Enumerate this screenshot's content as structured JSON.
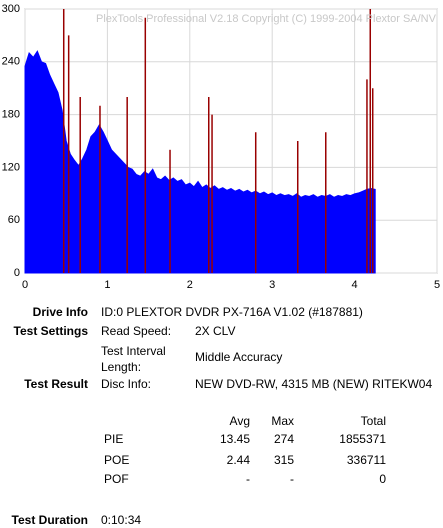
{
  "chart_data": {
    "type": "area-spikes",
    "watermark": "PlexTools Professional V2.18 Copyright (C) 1999-2004 Plextor SA/NV",
    "xlim": [
      0,
      5
    ],
    "xticks": [
      0,
      1,
      2,
      3,
      4,
      5
    ],
    "ylim": [
      0,
      300
    ],
    "yticks": [
      0,
      60,
      120,
      180,
      240,
      300
    ],
    "grid": true,
    "series": [
      {
        "color": "#0000ff",
        "x": [
          0,
          0.05,
          0.1,
          0.15,
          0.2,
          0.25,
          0.3,
          0.35,
          0.4,
          0.45,
          0.5,
          0.55,
          0.6,
          0.65,
          0.7,
          0.75,
          0.8,
          0.85,
          0.9,
          0.95,
          1.0,
          1.05,
          1.1,
          1.15,
          1.2,
          1.25,
          1.3,
          1.35,
          1.4,
          1.45,
          1.5,
          1.55,
          1.6,
          1.65,
          1.7,
          1.75,
          1.8,
          1.85,
          1.9,
          1.95,
          2.0,
          2.05,
          2.1,
          2.15,
          2.2,
          2.25,
          2.3,
          2.35,
          2.4,
          2.45,
          2.5,
          2.55,
          2.6,
          2.65,
          2.7,
          2.75,
          2.8,
          2.85,
          2.9,
          2.95,
          3.0,
          3.05,
          3.1,
          3.15,
          3.2,
          3.25,
          3.3,
          3.35,
          3.4,
          3.45,
          3.5,
          3.55,
          3.6,
          3.65,
          3.7,
          3.75,
          3.8,
          3.85,
          3.9,
          3.95,
          4.0,
          4.05,
          4.1,
          4.15,
          4.2,
          4.25
        ],
        "values": [
          235,
          250,
          245,
          252,
          240,
          238,
          225,
          215,
          205,
          185,
          150,
          135,
          128,
          122,
          130,
          140,
          155,
          160,
          168,
          160,
          150,
          140,
          135,
          130,
          125,
          120,
          118,
          112,
          110,
          115,
          112,
          118,
          108,
          106,
          110,
          105,
          108,
          104,
          106,
          100,
          102,
          98,
          104,
          97,
          100,
          96,
          99,
          95,
          97,
          94,
          96,
          93,
          95,
          92,
          94,
          91,
          93,
          90,
          92,
          89,
          91,
          88,
          90,
          88,
          89,
          87,
          90,
          86,
          88,
          87,
          89,
          86,
          88,
          87,
          89,
          86,
          88,
          87,
          89,
          88,
          90,
          91,
          93,
          95,
          96,
          95
        ]
      },
      {
        "color": "#990000",
        "x": [
          0.47,
          0.53,
          0.67,
          0.91,
          1.24,
          1.46,
          1.76,
          2.23,
          2.27,
          2.8,
          3.31,
          3.65,
          4.15,
          4.19,
          4.22
        ],
        "values": [
          300,
          270,
          200,
          190,
          200,
          290,
          140,
          200,
          180,
          160,
          150,
          160,
          220,
          300,
          210
        ]
      }
    ]
  },
  "report": {
    "drive_info": {
      "label": "Drive Info",
      "value": "ID:0 PLEXTOR DVDR PX-716A V1.02 (#187881)"
    },
    "test_settings": {
      "label": "Test Settings",
      "read_speed_label": "Read Speed:",
      "read_speed": "2X CLV",
      "interval_label_1": "Test Interval",
      "interval_label_2": "Length:",
      "interval": "Middle Accuracy"
    },
    "test_result": {
      "label": "Test Result",
      "disc_info_label": "Disc Info:",
      "disc_info": "NEW DVD-RW, 4315 MB (NEW) RITEKW04"
    },
    "table": {
      "header": [
        "Avg",
        "Max",
        "Total"
      ],
      "rows": [
        [
          "PIE",
          13.45,
          274,
          1855371
        ],
        [
          "POE",
          2.44,
          315,
          336711
        ],
        [
          "POF",
          "-",
          "-",
          0
        ]
      ]
    },
    "test_duration": {
      "label": "Test Duration",
      "value": "0:10:34"
    }
  }
}
